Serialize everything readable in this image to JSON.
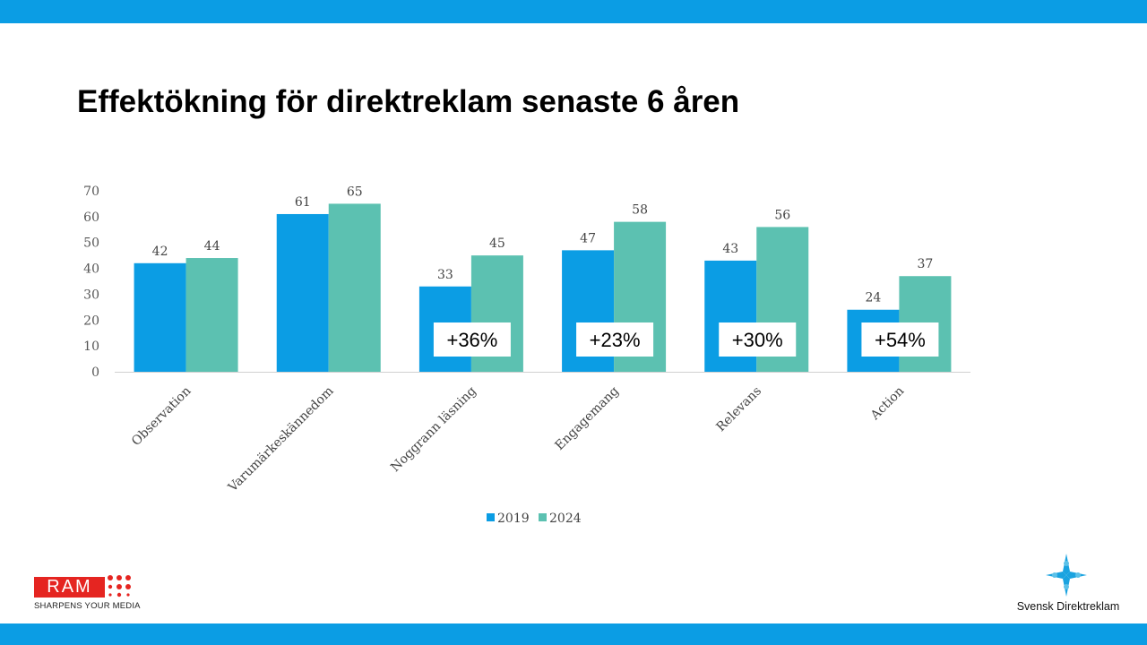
{
  "colors": {
    "accent": "#0b9de4",
    "series_2019": "#0b9de4",
    "series_2024": "#5cc1b1"
  },
  "title": "Effektökning för direktreklam senaste 6 åren",
  "logos": {
    "ram_text": "RAM",
    "ram_tagline": "SHARPENS YOUR MEDIA",
    "svensk_direktreklam": "Svensk Direktreklam"
  },
  "chart_data": {
    "type": "bar",
    "categories": [
      "Observation",
      "Varumärkeskännedom",
      "Noggrann läsning",
      "Engagemang",
      "Relevans",
      "Action"
    ],
    "series": [
      {
        "name": "2019",
        "values": [
          42,
          61,
          33,
          47,
          43,
          24
        ]
      },
      {
        "name": "2024",
        "values": [
          44,
          65,
          45,
          58,
          56,
          37
        ]
      }
    ],
    "ylim": [
      0,
      70
    ],
    "yticks": [
      0,
      10,
      20,
      30,
      40,
      50,
      60,
      70
    ],
    "grid": false,
    "legend": "bottom",
    "annotations": [
      {
        "category": "Noggrann läsning",
        "text": "+36%"
      },
      {
        "category": "Engagemang",
        "text": "+23%"
      },
      {
        "category": "Relevans",
        "text": "+30%"
      },
      {
        "category": "Action",
        "text": "+54%"
      }
    ]
  }
}
